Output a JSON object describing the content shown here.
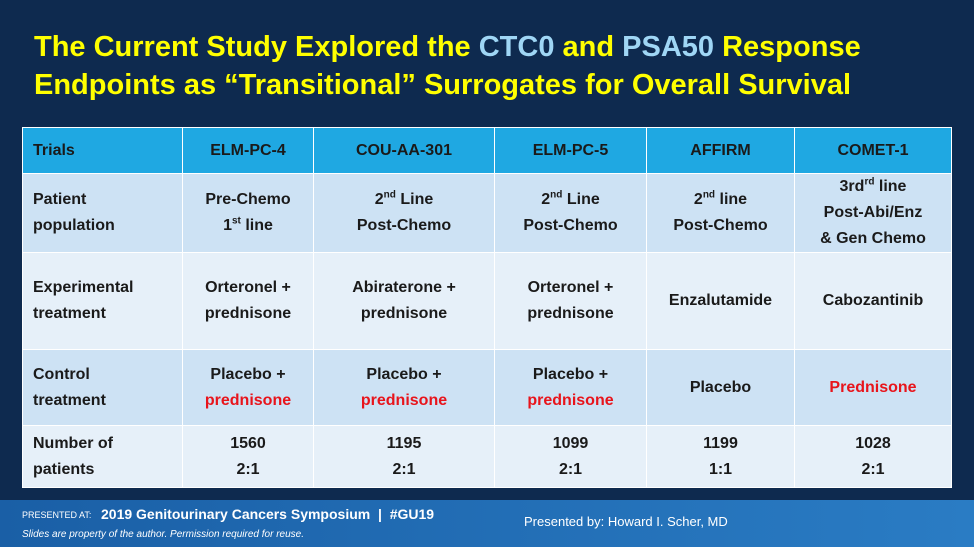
{
  "title": {
    "line1": [
      "The Current Study Explored the",
      "CTC0",
      "and",
      "PSA50",
      "Response"
    ],
    "line2": "Endpoints as “Transitional” Surrogates for Overall Survival"
  },
  "table": {
    "header": [
      "Trials",
      "ELM-PC-4",
      "COU-AA-301",
      "ELM-PC-5",
      "AFFIRM",
      "COMET-1"
    ],
    "rows": [
      [
        [
          "Patient",
          "population"
        ],
        [
          "Pre-Chemo",
          "1",
          "st",
          "line"
        ],
        [
          "2",
          "nd",
          "Line",
          "Post-Chemo"
        ],
        [
          "2",
          "nd",
          "Line",
          "Post-Chemo"
        ],
        [
          "2",
          "nd",
          "line",
          "Post-Chemo"
        ],
        [
          "3rd",
          "rd",
          "line",
          "Post-Abi/Enz",
          "& Gen Chemo"
        ]
      ],
      [
        [
          "Experimental",
          "treatment"
        ],
        [
          "Orteronel +",
          "prednisone"
        ],
        [
          "Abiraterone +",
          "prednisone"
        ],
        [
          "Orteronel +",
          "prednisone"
        ],
        [
          "Enzalutamide"
        ],
        [
          "Cabozantinib"
        ]
      ],
      [
        [
          "Control",
          "treatment"
        ],
        [
          "Placebo +",
          "prednisone"
        ],
        [
          "Placebo +",
          "prednisone"
        ],
        [
          "Placebo +",
          "prednisone"
        ],
        [
          "Placebo"
        ],
        [
          "Prednisone"
        ]
      ],
      [
        [
          "Number of",
          "patients"
        ],
        [
          "1560",
          "2:1"
        ],
        [
          "1195",
          "2:1"
        ],
        [
          "1099",
          "2:1"
        ],
        [
          "1199",
          "1:1"
        ],
        [
          "1028",
          "2:1"
        ]
      ]
    ]
  },
  "footer": {
    "presented_at": "PRESENTED AT:",
    "meeting": "2019 Genitourinary Cancers Symposium  |  #GU19",
    "disclaimer": "Slides are property of the author. Permission required for reuse.",
    "presenter": "Presented by: Howard I. Scher, MD"
  }
}
